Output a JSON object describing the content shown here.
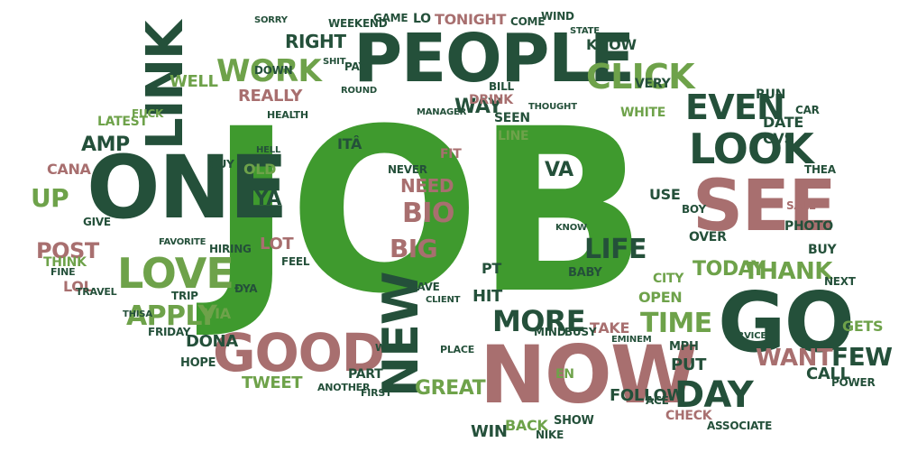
{
  "colors": {
    "dark": "#24503a",
    "bright": "#3f9a2e",
    "mid": "#6ea24a",
    "sage": "#7daa6c",
    "rose": "#a86f6f",
    "background": "#ffffff"
  },
  "words": [
    {
      "text": "JOB",
      "color": "bright"
    },
    {
      "text": "PEOPLE",
      "color": "dark"
    },
    {
      "text": "ONE",
      "color": "dark"
    },
    {
      "text": "LINK",
      "color": "dark"
    },
    {
      "text": "SEE",
      "color": "rose"
    },
    {
      "text": "GO",
      "color": "dark"
    },
    {
      "text": "NOW",
      "color": "rose"
    },
    {
      "text": "GOOD",
      "color": "rose"
    },
    {
      "text": "NEW",
      "color": "dark"
    },
    {
      "text": "LOVE",
      "color": "mid"
    },
    {
      "text": "WORK",
      "color": "mid"
    },
    {
      "text": "LOOK",
      "color": "dark"
    },
    {
      "text": "CLICK",
      "color": "mid"
    },
    {
      "text": "EVEN",
      "color": "dark"
    },
    {
      "text": "MORE",
      "color": "dark"
    },
    {
      "text": "DAY",
      "color": "dark"
    },
    {
      "text": "TIME",
      "color": "mid"
    },
    {
      "text": "THANK",
      "color": "mid"
    },
    {
      "text": "TODAY",
      "color": "mid"
    },
    {
      "text": "APPLY",
      "color": "mid"
    },
    {
      "text": "WANT",
      "color": "rose"
    },
    {
      "text": "BIG",
      "color": "rose"
    },
    {
      "text": "BIO",
      "color": "rose"
    },
    {
      "text": "NEED",
      "color": "rose"
    },
    {
      "text": "GREAT",
      "color": "mid"
    },
    {
      "text": "LIFE",
      "color": "dark"
    },
    {
      "text": "POST",
      "color": "rose"
    },
    {
      "text": "FEW",
      "color": "dark"
    },
    {
      "text": "UP",
      "color": "mid"
    },
    {
      "text": "AMP",
      "color": "dark"
    },
    {
      "text": "WAY",
      "color": "dark"
    },
    {
      "text": "RIGHT",
      "color": "dark"
    },
    {
      "text": "WELL",
      "color": "mid"
    },
    {
      "text": "DRINK",
      "color": "rose"
    },
    {
      "text": "REALLY",
      "color": "rose"
    },
    {
      "text": "LOT",
      "color": "rose"
    },
    {
      "text": "VIA",
      "color": "mid"
    },
    {
      "text": "OLD",
      "color": "mid"
    },
    {
      "text": "YA",
      "color": "dark"
    },
    {
      "text": "DONA",
      "color": "dark"
    },
    {
      "text": "TWEET",
      "color": "mid"
    },
    {
      "text": "CALL",
      "color": "dark"
    },
    {
      "text": "WIN",
      "color": "dark"
    },
    {
      "text": "BACK",
      "color": "mid"
    },
    {
      "text": "FOLLOW",
      "color": "dark"
    },
    {
      "text": "KNOW",
      "color": "dark"
    },
    {
      "text": "TONIGHT",
      "color": "rose"
    },
    {
      "text": "CHECK",
      "color": "rose"
    },
    {
      "text": "OPEN",
      "color": "mid"
    },
    {
      "text": "CITY",
      "color": "mid"
    },
    {
      "text": "PUT",
      "color": "dark"
    },
    {
      "text": "GETS",
      "color": "mid"
    },
    {
      "text": "USE",
      "color": "dark"
    },
    {
      "text": "WHITE",
      "color": "mid"
    },
    {
      "text": "DATE",
      "color": "dark"
    },
    {
      "text": "CVS",
      "color": "dark"
    },
    {
      "text": "VA",
      "color": "dark"
    },
    {
      "text": "TAKE",
      "color": "rose"
    },
    {
      "text": "VERY",
      "color": "dark"
    },
    {
      "text": "BUY",
      "color": "dark"
    },
    {
      "text": "LATEST",
      "color": "mid"
    },
    {
      "text": "THINK",
      "color": "mid"
    },
    {
      "text": "LOL",
      "color": "rose"
    },
    {
      "text": "CANA",
      "color": "rose"
    },
    {
      "text": "FUCK",
      "color": "mid"
    },
    {
      "text": "HIT",
      "color": "dark"
    },
    {
      "text": "PT",
      "color": "dark"
    },
    {
      "text": "SEEN",
      "color": "dark"
    },
    {
      "text": "LINE",
      "color": "mid"
    },
    {
      "text": "FIT",
      "color": "rose"
    },
    {
      "text": "NEVER",
      "color": "dark"
    },
    {
      "text": "SAVE",
      "color": "dark"
    },
    {
      "text": "CLIENT",
      "color": "dark"
    },
    {
      "text": "HIRING",
      "color": "dark"
    },
    {
      "text": "FEEL",
      "color": "dark"
    },
    {
      "text": "HEALTH",
      "color": "dark"
    },
    {
      "text": "PART",
      "color": "dark"
    },
    {
      "text": "ANOTHER",
      "color": "dark"
    },
    {
      "text": "FIRST",
      "color": "dark"
    },
    {
      "text": "BUSY",
      "color": "dark"
    },
    {
      "text": "MIND",
      "color": "dark"
    },
    {
      "text": "OVER",
      "color": "dark"
    },
    {
      "text": "PHOTO",
      "color": "dark"
    },
    {
      "text": "SALE",
      "color": "rose"
    },
    {
      "text": "RUN",
      "color": "dark"
    },
    {
      "text": "CAR",
      "color": "dark"
    },
    {
      "text": "NEXT",
      "color": "dark"
    },
    {
      "text": "SERVICE",
      "color": "dark"
    },
    {
      "text": "POWER",
      "color": "dark"
    },
    {
      "text": "ASSOCIATE",
      "color": "dark"
    },
    {
      "text": "SHOW",
      "color": "dark"
    },
    {
      "text": "HOPE",
      "color": "dark"
    },
    {
      "text": "FRIDAY",
      "color": "dark"
    },
    {
      "text": "BABY",
      "color": "dark"
    },
    {
      "text": "BOY",
      "color": "dark"
    },
    {
      "text": "EN",
      "color": "mid"
    },
    {
      "text": "MPH",
      "color": "dark"
    },
    {
      "text": "ACE",
      "color": "dark"
    },
    {
      "text": "GAME",
      "color": "dark"
    },
    {
      "text": "LO",
      "color": "dark"
    },
    {
      "text": "COME",
      "color": "dark"
    },
    {
      "text": "WIND",
      "color": "dark"
    },
    {
      "text": "STATE",
      "color": "dark"
    },
    {
      "text": "WEEKEND",
      "color": "dark"
    },
    {
      "text": "PAY",
      "color": "dark"
    },
    {
      "text": "SHIT",
      "color": "dark"
    },
    {
      "text": "DOWN",
      "color": "dark"
    },
    {
      "text": "GUY",
      "color": "dark"
    },
    {
      "text": "HELL",
      "color": "dark"
    },
    {
      "text": "FAVORITE",
      "color": "dark"
    },
    {
      "text": "TRIP",
      "color": "dark"
    },
    {
      "text": "TRAVEL",
      "color": "dark"
    },
    {
      "text": "GIVE",
      "color": "dark"
    },
    {
      "text": "FINE",
      "color": "dark"
    },
    {
      "text": "NIKE",
      "color": "dark"
    },
    {
      "text": "WORSE",
      "color": "dark"
    },
    {
      "text": "PLACE",
      "color": "dark"
    },
    {
      "text": "ITÂ",
      "color": "dark"
    },
    {
      "text": "THEA",
      "color": "dark"
    },
    {
      "text": "ÐYA",
      "color": "dark"
    },
    {
      "text": "THISA",
      "color": "dark"
    },
    {
      "text": "EMINEM",
      "color": "dark"
    },
    {
      "text": "KNOW",
      "color": "dark"
    },
    {
      "text": "BILL",
      "color": "dark"
    },
    {
      "text": "ROUND",
      "color": "dark"
    },
    {
      "text": "MANAGER",
      "color": "dark"
    },
    {
      "text": "SORRY",
      "color": "dark"
    },
    {
      "text": "THOUGHT",
      "color": "dark"
    }
  ]
}
